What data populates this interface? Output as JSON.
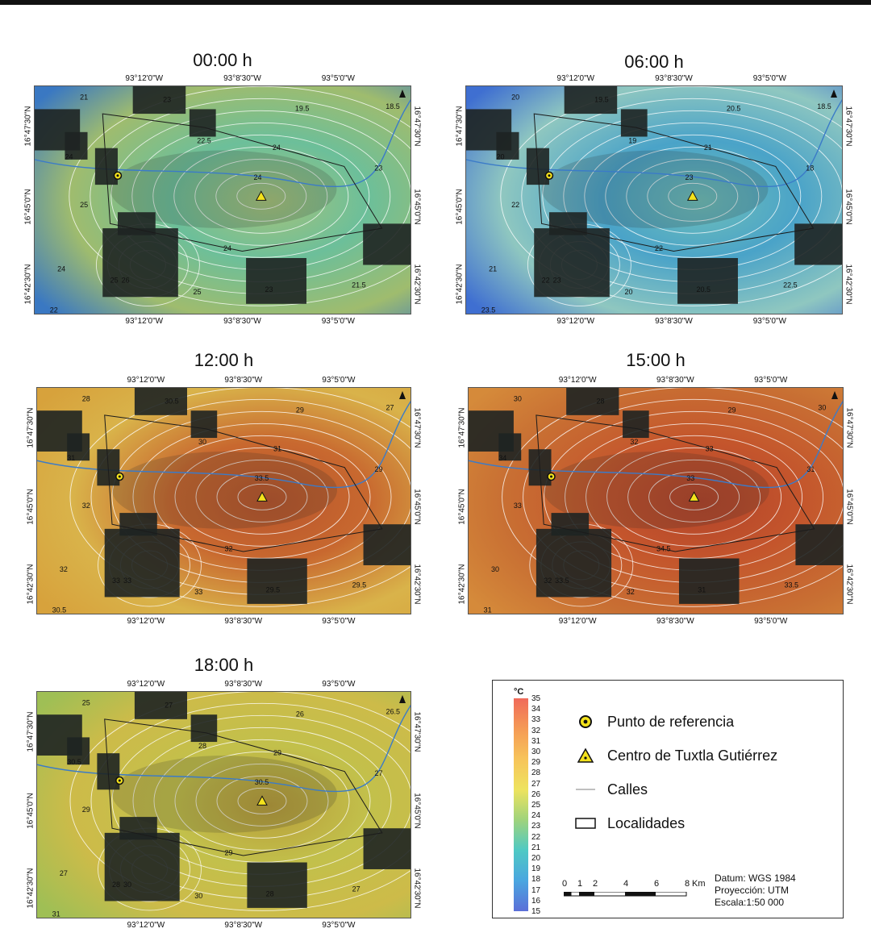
{
  "panels": [
    {
      "id": "p00",
      "title": "00:00 h",
      "gradient": [
        "#3a78c2",
        "#6cbf9a",
        "#a6c27a",
        "#9fbc6e"
      ],
      "lat_labels": [
        "16°47'30\"N",
        "16°45'0\"N",
        "16°42'30\"N"
      ],
      "lon_labels": [
        "93°12'0\"W",
        "93°8'30\"W",
        "93°5'0\"W"
      ],
      "iso_labels": [
        "21",
        "23",
        "19.5",
        "18.5",
        "23",
        "22.5",
        "24",
        "24",
        "25",
        "24",
        "25",
        "24",
        "26",
        "25",
        "24",
        "23",
        "21.5",
        "22"
      ]
    },
    {
      "id": "p06",
      "title": "06:00 h",
      "gradient": [
        "#3f6fd1",
        "#4aa3c8",
        "#6fbfb9",
        "#8fc7c0"
      ],
      "lat_labels": [
        "16°47'30\"N",
        "16°45'0\"N",
        "16°42'30\"N"
      ],
      "lon_labels": [
        "93°12'0\"W",
        "93°8'30\"W",
        "93°5'0\"W"
      ],
      "iso_labels": [
        "20",
        "19.5",
        "20.5",
        "18.5",
        "18",
        "19",
        "21",
        "20",
        "22",
        "23",
        "22",
        "22",
        "23",
        "20",
        "21",
        "20.5",
        "22.5",
        "23.5"
      ]
    },
    {
      "id": "p12",
      "title": "12:00 h",
      "gradient": [
        "#d7a23c",
        "#c8682f",
        "#b8552c",
        "#d9b34a"
      ],
      "lat_labels": [
        "16°47'30\"N",
        "16°45'0\"N",
        "16°42'30\"N"
      ],
      "lon_labels": [
        "93°12'0\"W",
        "93°8'30\"W",
        "93°5'0\"W"
      ],
      "iso_labels": [
        "28",
        "30.5",
        "29",
        "27",
        "29",
        "30",
        "31",
        "31",
        "32",
        "33.5",
        "33",
        "32",
        "33",
        "33",
        "32",
        "29.5",
        "29.5",
        "30.5"
      ]
    },
    {
      "id": "p15",
      "title": "15:00 h",
      "gradient": [
        "#d58a3a",
        "#c4552c",
        "#b2442a",
        "#c86f33"
      ],
      "lat_labels": [
        "16°47'30\"N",
        "16°45'0\"N",
        "16°42'30\"N"
      ],
      "lon_labels": [
        "93°12'0\"W",
        "93°8'30\"W",
        "93°5'0\"W"
      ],
      "iso_labels": [
        "30",
        "28",
        "29",
        "30",
        "31",
        "32",
        "33",
        "34",
        "33",
        "33",
        "32",
        "34.5",
        "33.5",
        "32",
        "30",
        "31",
        "33.5",
        "31"
      ]
    },
    {
      "id": "p18",
      "title": "18:00 h",
      "gradient": [
        "#9fbf55",
        "#c2c04b",
        "#b89d3a",
        "#cdbb49"
      ],
      "lat_labels": [
        "16°47'30\"N",
        "16°45'0\"N",
        "16°42'30\"N"
      ],
      "lon_labels": [
        "93°12'0\"W",
        "93°8'30\"W",
        "93°5'0\"W"
      ],
      "iso_labels": [
        "25",
        "27",
        "26",
        "26.5",
        "27",
        "28",
        "29",
        "30.5",
        "29",
        "30.5",
        "28",
        "29",
        "30",
        "30",
        "27",
        "28",
        "27",
        "31"
      ]
    }
  ],
  "legend": {
    "unit": "°C",
    "ticks": [
      "35",
      "34",
      "33",
      "32",
      "31",
      "30",
      "29",
      "28",
      "27",
      "26",
      "25",
      "24",
      "23",
      "22",
      "21",
      "20",
      "19",
      "18",
      "17",
      "16",
      "15"
    ],
    "colorbar_colors": [
      "#f06a5a",
      "#f59a55",
      "#f7c45a",
      "#eee35e",
      "#9fd37c",
      "#4fc9c4",
      "#4aa6e0",
      "#5b6fd8"
    ],
    "items": [
      {
        "symbol": "reference-point",
        "label": "Punto de referencia"
      },
      {
        "symbol": "center-triangle",
        "label": "Centro de Tuxtla Gutiérrez"
      },
      {
        "symbol": "street-line",
        "label": "Calles"
      },
      {
        "symbol": "locality-box",
        "label": "Localidades"
      }
    ],
    "scale_labels": [
      "0",
      "1",
      "2",
      "4",
      "6",
      "8"
    ],
    "scale_unit": "Km",
    "datum": "Datum: WGS 1984",
    "projection": "Proyección: UTM",
    "scale": "Escala:1:50 000"
  }
}
